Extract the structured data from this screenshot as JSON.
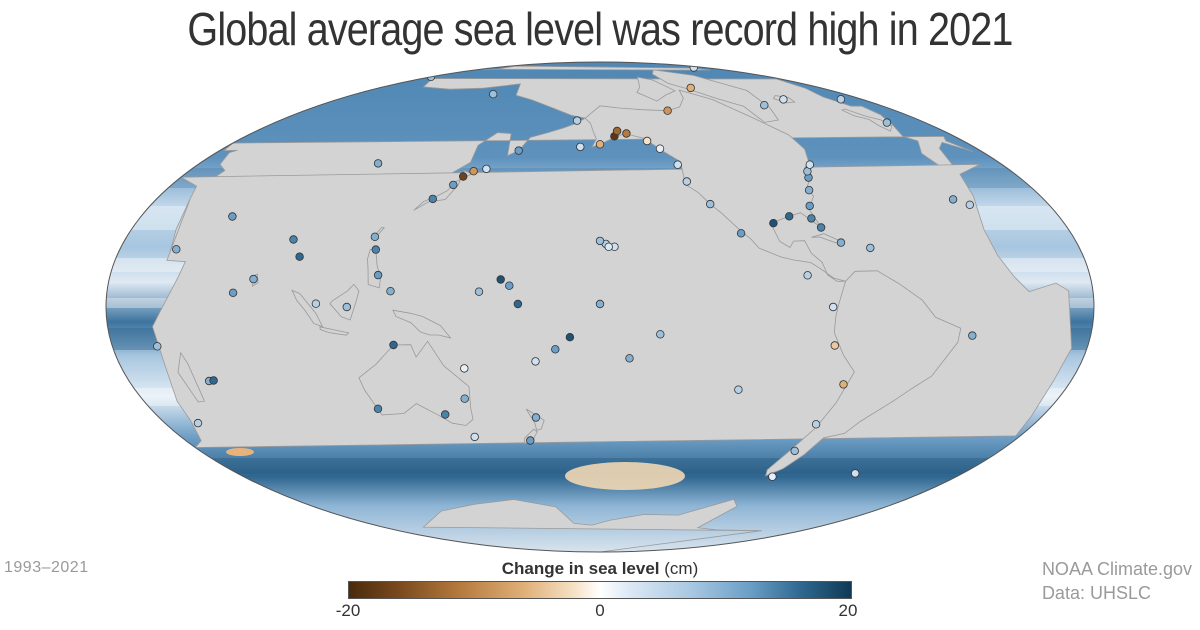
{
  "title": "Global average sea level was record high in 2021",
  "date_range": "1993–2021",
  "legend": {
    "title_bold": "Change in sea level",
    "title_unit": "(cm)",
    "min_label": "-20",
    "mid_label": "0",
    "max_label": "20",
    "min": -20,
    "max": 20,
    "colors": {
      "negative_max": "#4a2a0c",
      "zero": "#ffffff",
      "positive_max": "#0f3a55"
    }
  },
  "credit": {
    "source": "NOAA Climate.gov",
    "data": "Data: UHSLC"
  },
  "map": {
    "projection": "Hammer/Mollweide (Pacific-centered)",
    "land_color": "#d3d3d3",
    "ocean_base_color": "#6f9fc6",
    "stations": [
      {
        "lon": 100,
        "lat": 45,
        "v": 10
      },
      {
        "lon": 135,
        "lat": 35,
        "v": 14
      },
      {
        "lon": 140,
        "lat": 40,
        "v": 12
      },
      {
        "lon": 142,
        "lat": 43,
        "v": -16
      },
      {
        "lon": 145,
        "lat": 45,
        "v": -8
      },
      {
        "lon": 150,
        "lat": 46,
        "v": 4
      },
      {
        "lon": 120,
        "lat": 22,
        "v": 10
      },
      {
        "lon": 122,
        "lat": 18,
        "v": 14
      },
      {
        "lon": 125,
        "lat": 10,
        "v": 12
      },
      {
        "lon": 130,
        "lat": 5,
        "v": 10
      },
      {
        "lon": 115,
        "lat": 0,
        "v": 8
      },
      {
        "lon": 104,
        "lat": 1,
        "v": 6
      },
      {
        "lon": 80,
        "lat": 8,
        "v": 10
      },
      {
        "lon": 73,
        "lat": 4,
        "v": 12
      },
      {
        "lon": 55,
        "lat": -20,
        "v": 10
      },
      {
        "lon": 57,
        "lat": -20,
        "v": 16
      },
      {
        "lon": 115,
        "lat": -32,
        "v": 14
      },
      {
        "lon": 130,
        "lat": -12,
        "v": 16
      },
      {
        "lon": 140,
        "lat": -35,
        "v": 14
      },
      {
        "lon": 150,
        "lat": -30,
        "v": 10
      },
      {
        "lon": 153,
        "lat": -20,
        "v": 2
      },
      {
        "lon": 170,
        "lat": -45,
        "v": 12
      },
      {
        "lon": 175,
        "lat": -37,
        "v": 10
      },
      {
        "lon": 170,
        "lat": 7,
        "v": 12
      },
      {
        "lon": 167,
        "lat": 9,
        "v": 18
      },
      {
        "lon": 160,
        "lat": 5,
        "v": 8
      },
      {
        "lon": 173,
        "lat": 1,
        "v": 16
      },
      {
        "lon": 178,
        "lat": -18,
        "v": 4
      },
      {
        "lon": -175,
        "lat": -14,
        "v": 12
      },
      {
        "lon": -170,
        "lat": -10,
        "v": 18
      },
      {
        "lon": -158,
        "lat": 21,
        "v": 6
      },
      {
        "lon": -155,
        "lat": 20,
        "v": 4
      },
      {
        "lon": -157,
        "lat": 20,
        "v": 3
      },
      {
        "lon": -160,
        "lat": 22,
        "v": 8
      },
      {
        "lon": -160,
        "lat": 1,
        "v": 10
      },
      {
        "lon": -150,
        "lat": -17,
        "v": 10
      },
      {
        "lon": -140,
        "lat": -9,
        "v": 8
      },
      {
        "lon": -170,
        "lat": 55,
        "v": 4
      },
      {
        "lon": -160,
        "lat": 56,
        "v": -6
      },
      {
        "lon": -152,
        "lat": 59,
        "v": -18
      },
      {
        "lon": -150,
        "lat": 61,
        "v": -12
      },
      {
        "lon": -145,
        "lat": 60,
        "v": -10
      },
      {
        "lon": -135,
        "lat": 57,
        "v": -2
      },
      {
        "lon": -130,
        "lat": 54,
        "v": 2
      },
      {
        "lon": -125,
        "lat": 48,
        "v": 4
      },
      {
        "lon": -124,
        "lat": 42,
        "v": 6
      },
      {
        "lon": -118,
        "lat": 34,
        "v": 8
      },
      {
        "lon": -110,
        "lat": 24,
        "v": 12
      },
      {
        "lon": -97,
        "lat": 27,
        "v": 18
      },
      {
        "lon": -90,
        "lat": 29,
        "v": 16
      },
      {
        "lon": -82,
        "lat": 28,
        "v": 14
      },
      {
        "lon": -80,
        "lat": 32,
        "v": 12
      },
      {
        "lon": -76,
        "lat": 37,
        "v": 10
      },
      {
        "lon": -72,
        "lat": 41,
        "v": 12
      },
      {
        "lon": -70,
        "lat": 43,
        "v": 8
      },
      {
        "lon": -66,
        "lat": 45,
        "v": 4
      },
      {
        "lon": -80,
        "lat": 25,
        "v": 14
      },
      {
        "lon": -75,
        "lat": 20,
        "v": 10
      },
      {
        "lon": -65,
        "lat": 18,
        "v": 8
      },
      {
        "lon": -90,
        "lat": 10,
        "v": 6
      },
      {
        "lon": -82,
        "lat": 0,
        "v": 4
      },
      {
        "lon": -80,
        "lat": -12,
        "v": -4
      },
      {
        "lon": -72,
        "lat": -24,
        "v": -6
      },
      {
        "lon": -73,
        "lat": -37,
        "v": 6
      },
      {
        "lon": -72,
        "lat": -46,
        "v": 8
      },
      {
        "lon": -68,
        "lat": -55,
        "v": 2
      },
      {
        "lon": -110,
        "lat": -27,
        "v": 6
      },
      {
        "lon": -30,
        "lat": -8,
        "v": 10
      },
      {
        "lon": -20,
        "lat": 30,
        "v": 10
      },
      {
        "lon": -15,
        "lat": 28,
        "v": 6
      },
      {
        "lon": 2,
        "lat": 52,
        "v": 8
      },
      {
        "lon": 10,
        "lat": 60,
        "v": 6
      },
      {
        "lon": 20,
        "lat": 70,
        "v": 8
      },
      {
        "lon": -20,
        "lat": 65,
        "v": 4
      },
      {
        "lon": -40,
        "lat": 65,
        "v": 8
      },
      {
        "lon": 15,
        "lat": 79,
        "v": 4
      },
      {
        "lon": -60,
        "lat": 75,
        "v": -6
      },
      {
        "lon": -110,
        "lat": 68,
        "v": -8
      },
      {
        "lon": 35,
        "lat": -30,
        "v": 6
      },
      {
        "lon": 40,
        "lat": -10,
        "v": 8
      },
      {
        "lon": 45,
        "lat": 15,
        "v": 10
      },
      {
        "lon": 60,
        "lat": 25,
        "v": 12
      },
      {
        "lon": 90,
        "lat": 20,
        "v": 14
      },
      {
        "lon": 95,
        "lat": 15,
        "v": 16
      },
      {
        "lon": -30,
        "lat": -50,
        "v": 4
      },
      {
        "lon": 100,
        "lat": 72,
        "v": 8
      },
      {
        "lon": -175,
        "lat": 65,
        "v": 6
      },
      {
        "lon": 160,
        "lat": 53,
        "v": 12
      },
      {
        "lon": 147,
        "lat": -43,
        "v": 4
      }
    ]
  }
}
